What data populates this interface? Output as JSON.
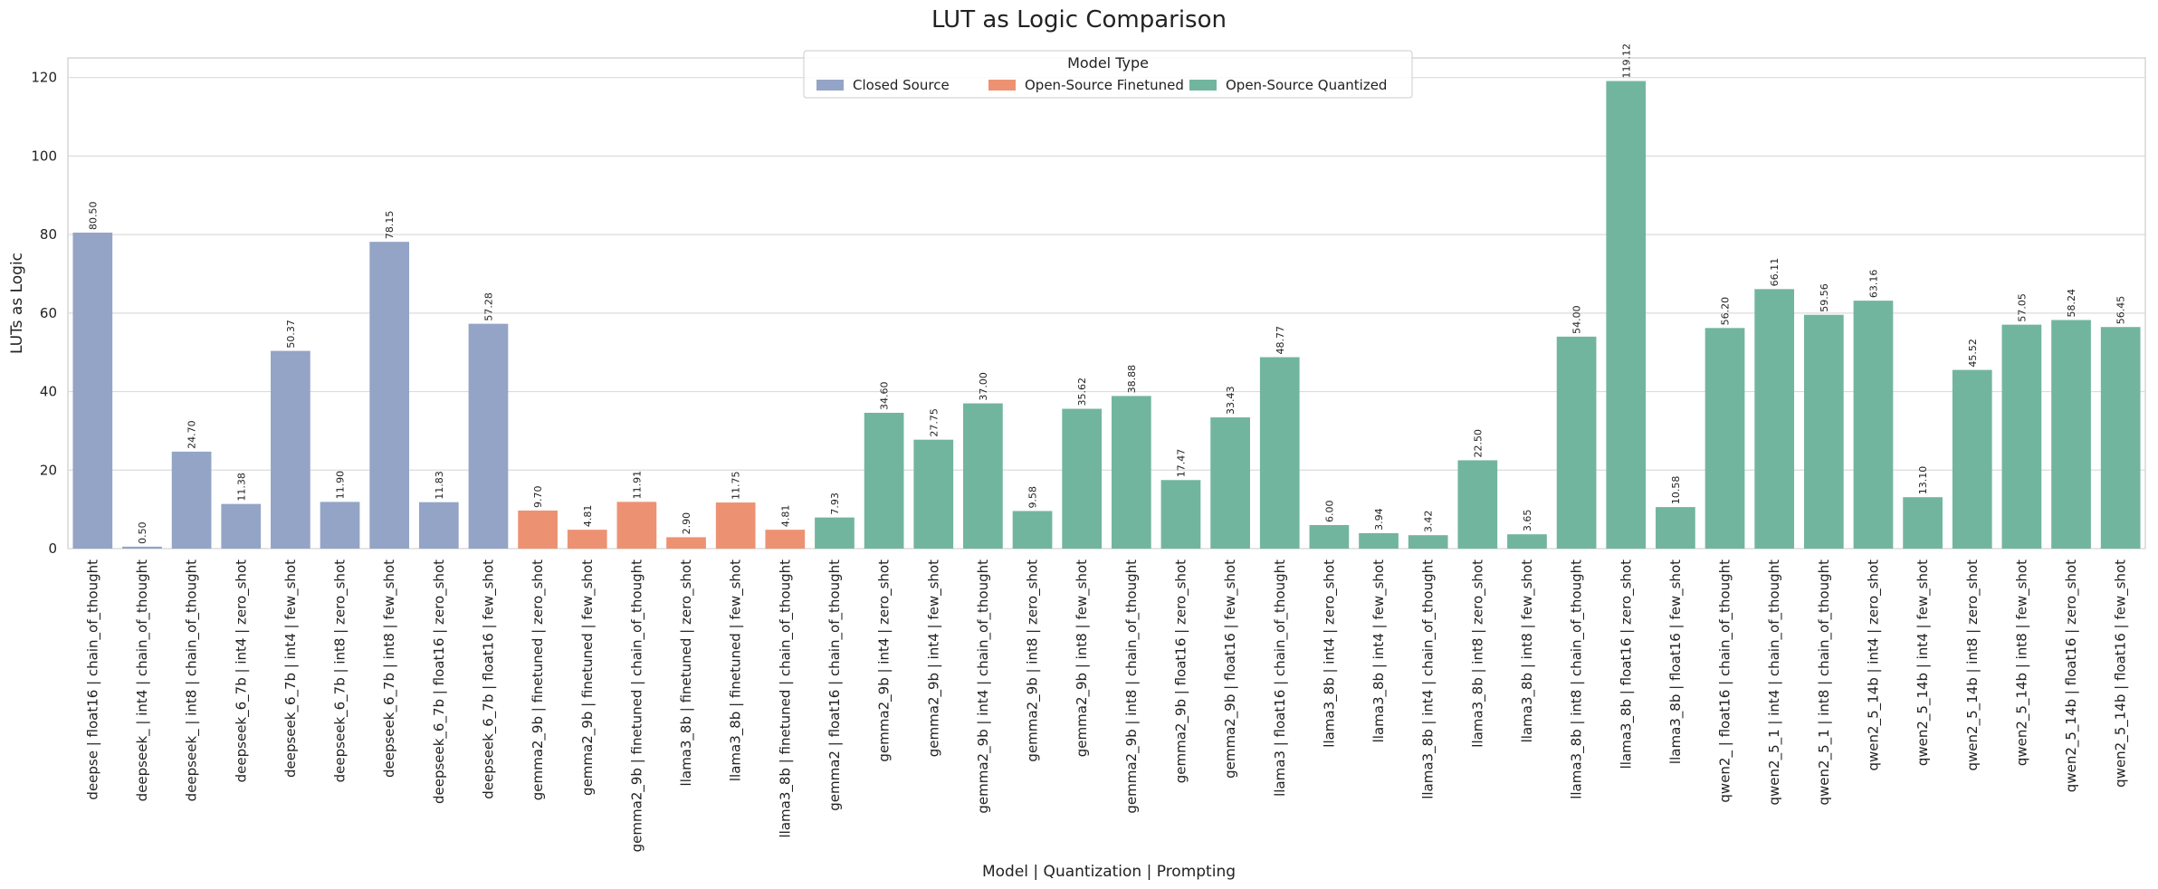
{
  "chart_data": {
    "type": "bar",
    "title": "LUT as Logic Comparison",
    "xlabel": "Model | Quantization | Prompting",
    "ylabel": "LUTs as Logic",
    "ylim": [
      0,
      125
    ],
    "yticks": [
      0,
      20,
      40,
      60,
      80,
      100,
      120
    ],
    "grid": true,
    "legend": {
      "title": "Model Type",
      "placement": "top-center",
      "entries": [
        {
          "name": "Closed Source",
          "color": "#94a4c6"
        },
        {
          "name": "Open-Source Finetuned",
          "color": "#ec9272"
        },
        {
          "name": "Open-Source Quantized",
          "color": "#72b59f"
        }
      ]
    },
    "categories": [
      "deepse | float16 | chain_of_thought",
      "deepseek_ | int4 | chain_of_thought",
      "deepseek_ | int8 | chain_of_thought",
      "deepseek_6_7b | int4 | zero_shot",
      "deepseek_6_7b | int4 | few_shot",
      "deepseek_6_7b | int8 | zero_shot",
      "deepseek_6_7b | int8 | few_shot",
      "deepseek_6_7b | float16 | zero_shot",
      "deepseek_6_7b | float16 | few_shot",
      "gemma2_9b | finetuned | zero_shot",
      "gemma2_9b | finetuned | few_shot",
      "gemma2_9b | finetuned | chain_of_thought",
      "llama3_8b | finetuned | zero_shot",
      "llama3_8b | finetuned | few_shot",
      "llama3_8b | finetuned | chain_of_thought",
      "gemma2 | float16 | chain_of_thought",
      "gemma2_9b | int4 | zero_shot",
      "gemma2_9b | int4 | few_shot",
      "gemma2_9b | int4 | chain_of_thought",
      "gemma2_9b | int8 | zero_shot",
      "gemma2_9b | int8 | few_shot",
      "gemma2_9b | int8 | chain_of_thought",
      "gemma2_9b | float16 | zero_shot",
      "gemma2_9b | float16 | few_shot",
      "llama3 | float16 | chain_of_thought",
      "llama3_8b | int4 | zero_shot",
      "llama3_8b | int4 | few_shot",
      "llama3_8b | int4 | chain_of_thought",
      "llama3_8b | int8 | zero_shot",
      "llama3_8b | int8 | few_shot",
      "llama3_8b | int8 | chain_of_thought",
      "llama3_8b | float16 | zero_shot",
      "llama3_8b | float16 | few_shot",
      "qwen2_ | float16 | chain_of_thought",
      "qwen2_5_1 | int4 | chain_of_thought",
      "qwen2_5_1 | int8 | chain_of_thought",
      "qwen2_5_14b | int4 | zero_shot",
      "qwen2_5_14b | int4 | few_shot",
      "qwen2_5_14b | int8 | zero_shot",
      "qwen2_5_14b | int8 | few_shot",
      "qwen2_5_14b | float16 | zero_shot",
      "qwen2_5_14b | float16 | few_shot"
    ],
    "values": [
      80.5,
      0.5,
      24.7,
      11.38,
      50.37,
      11.9,
      78.15,
      11.83,
      57.28,
      9.7,
      4.81,
      11.91,
      2.9,
      11.75,
      4.81,
      7.93,
      34.6,
      27.75,
      37.0,
      9.58,
      35.62,
      38.88,
      17.47,
      33.43,
      48.77,
      6.0,
      3.94,
      3.42,
      22.5,
      3.65,
      54.0,
      119.12,
      10.58,
      56.2,
      66.11,
      59.56,
      63.16,
      13.1,
      45.52,
      57.05,
      58.24,
      56.45
    ],
    "value_labels": [
      "80.50",
      "0.50",
      "24.70",
      "11.38",
      "50.37",
      "11.90",
      "78.15",
      "11.83",
      "57.28",
      "9.70",
      "4.81",
      "11.91",
      "2.90",
      "11.75",
      "4.81",
      "7.93",
      "34.60",
      "27.75",
      "37.00",
      "9.58",
      "35.62",
      "38.88",
      "17.47",
      "33.43",
      "48.77",
      "6.00",
      "3.94",
      "3.42",
      "22.50",
      "3.65",
      "54.00",
      "119.12",
      "10.58",
      "56.20",
      "66.11",
      "59.56",
      "63.16",
      "13.10",
      "45.52",
      "57.05",
      "58.24",
      "56.45"
    ],
    "groups": [
      "Closed Source",
      "Closed Source",
      "Closed Source",
      "Closed Source",
      "Closed Source",
      "Closed Source",
      "Closed Source",
      "Closed Source",
      "Closed Source",
      "Open-Source Finetuned",
      "Open-Source Finetuned",
      "Open-Source Finetuned",
      "Open-Source Finetuned",
      "Open-Source Finetuned",
      "Open-Source Finetuned",
      "Open-Source Quantized",
      "Open-Source Quantized",
      "Open-Source Quantized",
      "Open-Source Quantized",
      "Open-Source Quantized",
      "Open-Source Quantized",
      "Open-Source Quantized",
      "Open-Source Quantized",
      "Open-Source Quantized",
      "Open-Source Quantized",
      "Open-Source Quantized",
      "Open-Source Quantized",
      "Open-Source Quantized",
      "Open-Source Quantized",
      "Open-Source Quantized",
      "Open-Source Quantized",
      "Open-Source Quantized",
      "Open-Source Quantized",
      "Open-Source Quantized",
      "Open-Source Quantized",
      "Open-Source Quantized",
      "Open-Source Quantized",
      "Open-Source Quantized",
      "Open-Source Quantized",
      "Open-Source Quantized",
      "Open-Source Quantized",
      "Open-Source Quantized"
    ]
  }
}
